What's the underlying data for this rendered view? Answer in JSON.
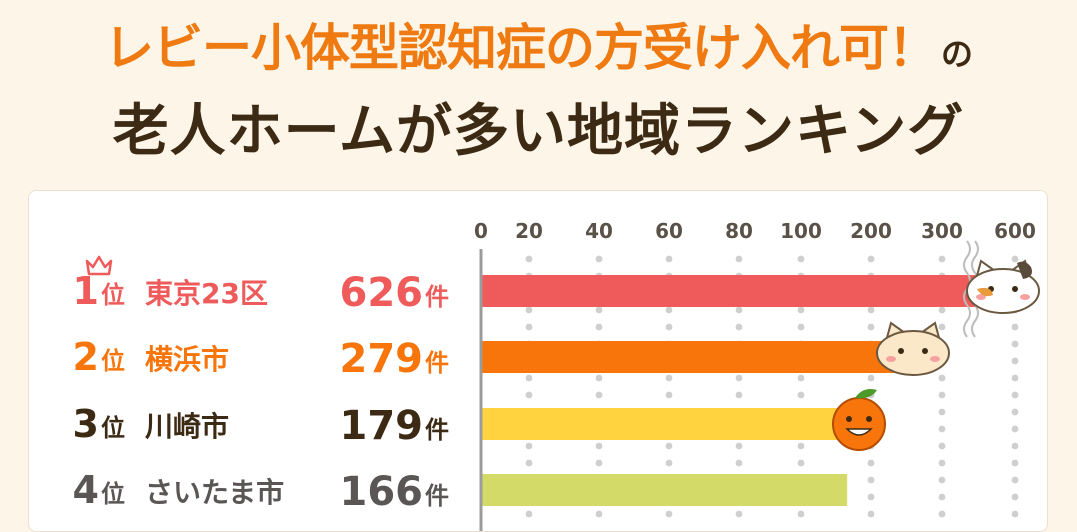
{
  "header": {
    "title_line1_main": "レビー小体型認知症の方受け入れ可！",
    "title_line1_suffix": "の",
    "title_line2": "老人ホームが多い地域ランキング"
  },
  "colors": {
    "title_accent": "#f07a12",
    "title_dark": "#3d2a14",
    "rank1": "#ef5b5b",
    "rank2": "#f7750a",
    "rank3": "#ffd23f",
    "rank4": "#d4da67"
  },
  "chart_data": {
    "type": "bar",
    "orientation": "horizontal",
    "x_axis_scale": "broken (0–200 linear, then 200→300→600)",
    "x_ticks": [
      "0",
      "20",
      "40",
      "60",
      "80",
      "100",
      "200",
      "300",
      "600"
    ],
    "rank_suffix": "位",
    "unit": "件",
    "rows": [
      {
        "rank": "1",
        "area": "東京23区",
        "count": "626",
        "value": 626
      },
      {
        "rank": "2",
        "area": "横浜市",
        "count": "279",
        "value": 279
      },
      {
        "rank": "3",
        "area": "川崎市",
        "count": "179",
        "value": 179
      },
      {
        "rank": "4",
        "area": "さいたま市",
        "count": "166",
        "value": 166
      }
    ]
  }
}
